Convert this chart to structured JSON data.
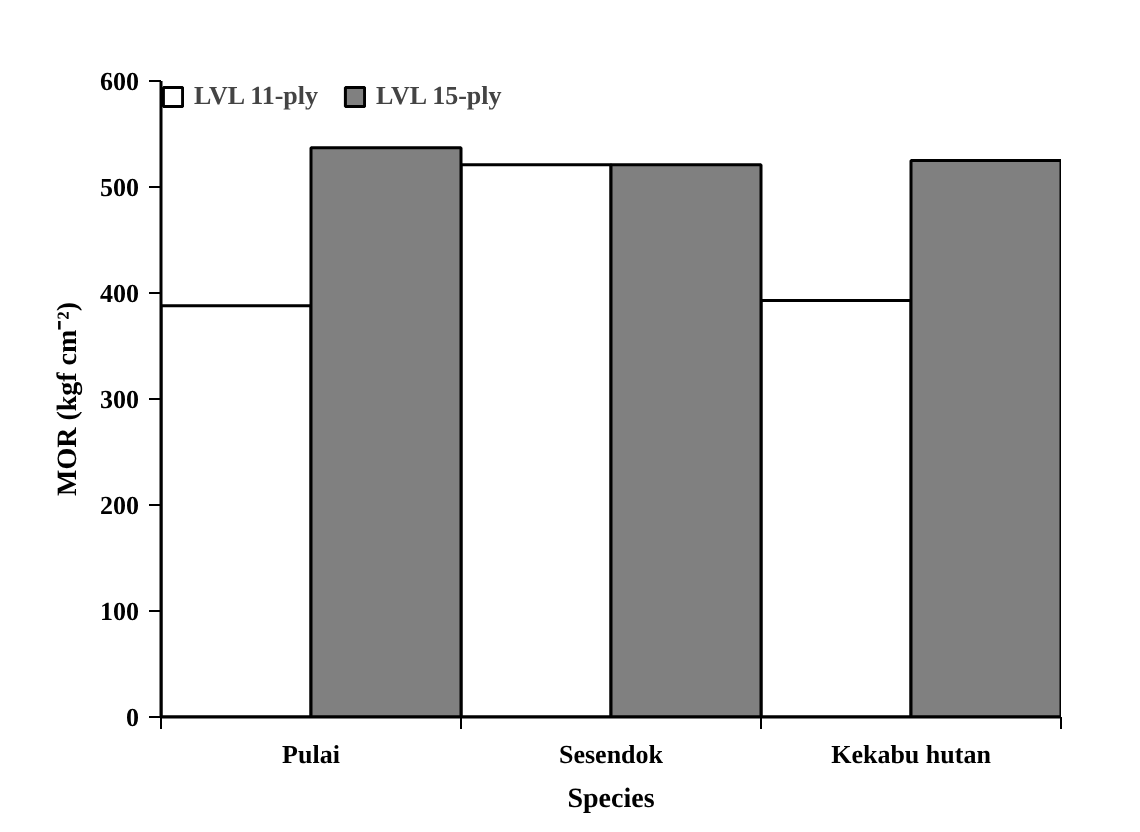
{
  "chart_data": {
    "type": "bar",
    "xlabel": "Species",
    "ylabel": "MOR (kgf cm⁻²)",
    "categories": [
      "Pulai",
      "Sesendok",
      "Kekabu hutan"
    ],
    "series": [
      {
        "name": "LVL 11-ply",
        "color": "#ffffff",
        "values": [
          388,
          521,
          393
        ]
      },
      {
        "name": "LVL 15-ply",
        "color": "#808080",
        "values": [
          537,
          521,
          525
        ]
      }
    ],
    "ylim": [
      0,
      600
    ],
    "yticks": [
      0,
      100,
      200,
      300,
      400,
      500,
      600
    ],
    "grid": false,
    "legend": "top left"
  }
}
